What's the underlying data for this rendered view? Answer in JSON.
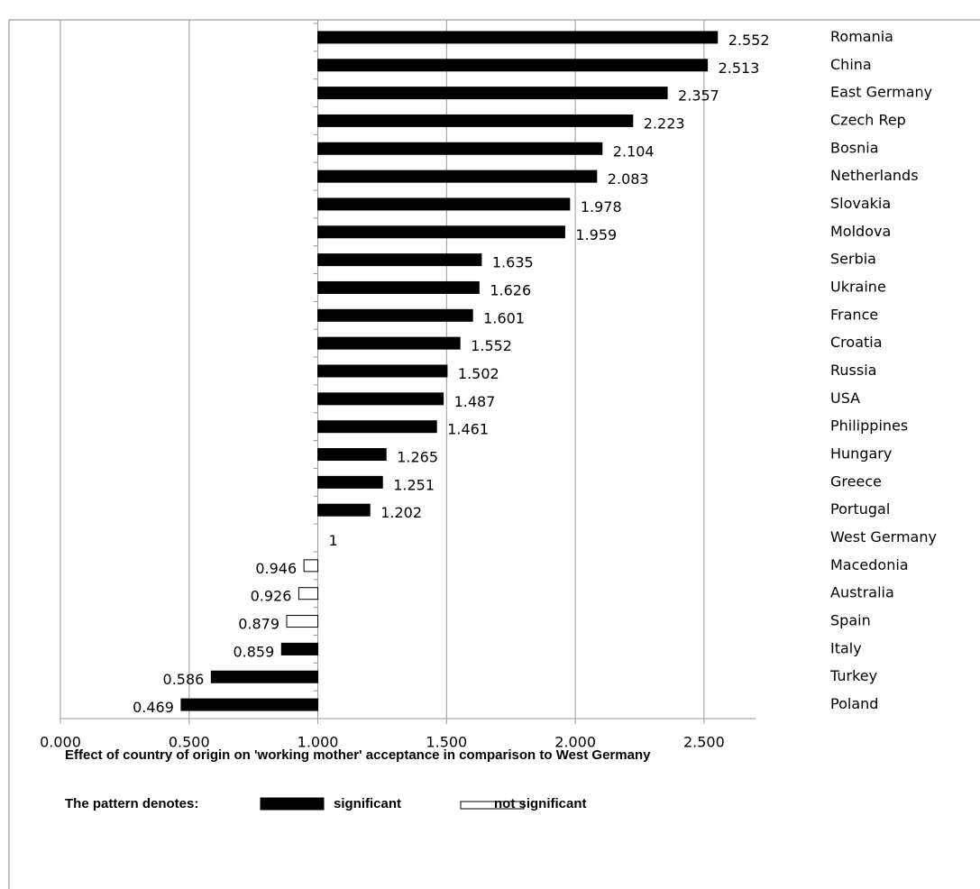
{
  "chart_data": {
    "type": "bar",
    "orientation": "horizontal",
    "categories": [
      "Romania",
      "China",
      "East Germany",
      "Czech Rep",
      "Bosnia",
      "Netherlands",
      "Slovakia",
      "Moldova",
      "Serbia",
      "Ukraine",
      "France",
      "Croatia",
      "Russia",
      "USA",
      "Philippines",
      "Hungary",
      "Greece",
      "Portugal",
      "West Germany",
      "Macedonia",
      "Australia",
      "Spain",
      "Italy",
      "Turkey",
      "Poland"
    ],
    "values": [
      2.552,
      2.513,
      2.357,
      2.223,
      2.104,
      2.083,
      1.978,
      1.959,
      1.635,
      1.626,
      1.601,
      1.552,
      1.502,
      1.487,
      1.461,
      1.265,
      1.251,
      1.202,
      1,
      0.946,
      0.926,
      0.879,
      0.859,
      0.586,
      0.469
    ],
    "colors": [
      "#000000",
      "#000000",
      "#000000",
      "#000000",
      "#000000",
      "#000000",
      "#000000",
      "#000000",
      "#000000",
      "#000000",
      "#000000",
      "#000000",
      "#000000",
      "#000000",
      "#000000",
      "#000000",
      "#000000",
      "#000000",
      "#000000",
      "#ffffff",
      "#ffffff",
      "#ffffff",
      "#000000",
      "#000000",
      "#000000"
    ],
    "base": 1,
    "xlim": [
      0,
      2.7
    ],
    "xticks": [
      {
        "value": 0,
        "label": "0.000"
      },
      {
        "value": 0.5,
        "label": "0.500"
      },
      {
        "value": 1,
        "label": "1.000"
      },
      {
        "value": 1.5,
        "label": "1.500"
      },
      {
        "value": 2,
        "label": "2.000"
      },
      {
        "value": 2.5,
        "label": "2.500"
      }
    ],
    "grid": true,
    "x_label": "Effect of country of origin on 'working mother' acceptance in comparison to West Germany",
    "legend": {
      "title": "The pattern denotes:",
      "items": [
        {
          "name": "significant",
          "color": "#000000"
        },
        {
          "name": "not significant",
          "color": "#ffffff"
        }
      ]
    }
  }
}
